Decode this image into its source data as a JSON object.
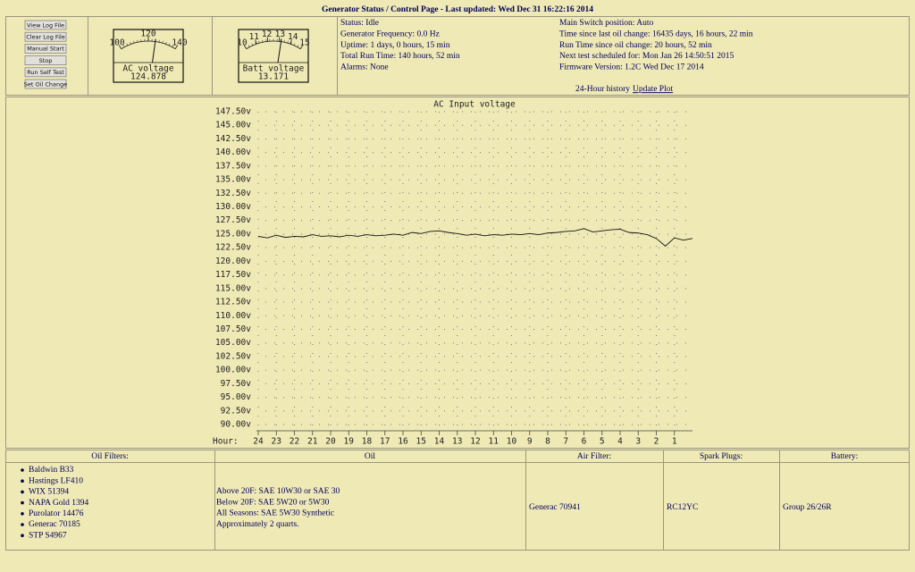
{
  "header": {
    "title": "Generator Status / Control Page - Last updated: Wed Dec 31 16:22:16 2014"
  },
  "buttons": [
    "View Log File",
    "Clear Log File",
    "Manual Start",
    "Stop",
    "Run Self Test",
    "Set Oil Change"
  ],
  "gauges": [
    {
      "scale": [
        100,
        120,
        140
      ],
      "label": "AC voltage",
      "value": 124.878
    },
    {
      "scale": [
        10,
        11,
        12,
        13,
        14,
        15
      ],
      "label": "Batt voltage",
      "value": 13.171
    }
  ],
  "status": {
    "left": [
      "Status: Idle",
      "Generator Frequency: 0.0 Hz",
      "Uptime: 1 days, 0 hours, 15 min",
      "Total Run Time: 140 hours, 52 min",
      "Alarms: None"
    ],
    "right": [
      "Main Switch position: Auto",
      "Time since last oil change: 16435 days, 16 hours, 22 min",
      "Run Time since oil change: 20 hours, 52 min",
      "Next test scheduled for: Mon Jan 26 14:50:51 2015",
      "Firmware Version: 1.2C Wed Dec 17 2014"
    ],
    "history_label": "24-Hour history",
    "history_link": "Update Plot"
  },
  "chart_data": {
    "type": "line",
    "title": "AC Input voltage",
    "x_label": "Hour:",
    "color": "#111111",
    "grid": true,
    "x": [
      24,
      23.5,
      23,
      22.5,
      22,
      21.5,
      21,
      20.5,
      20,
      19.5,
      19,
      18.5,
      18,
      17.5,
      17,
      16.5,
      16,
      15.5,
      15,
      14.5,
      14,
      13.5,
      13,
      12.5,
      12,
      11.5,
      11,
      10.5,
      10,
      9.5,
      9,
      8.5,
      8,
      7.5,
      7,
      6.5,
      6,
      5.5,
      5,
      4.5,
      4,
      3.5,
      3,
      2.5,
      2,
      1.5,
      1,
      0.5,
      0
    ],
    "values": [
      124.6,
      124.3,
      124.8,
      124.4,
      124.6,
      124.5,
      124.9,
      124.6,
      124.7,
      124.5,
      124.8,
      124.6,
      124.9,
      124.7,
      124.8,
      125.0,
      124.8,
      125.3,
      125.1,
      125.5,
      125.6,
      125.3,
      125.1,
      124.8,
      125.0,
      124.7,
      124.9,
      124.8,
      125.0,
      124.9,
      125.1,
      124.9,
      125.2,
      125.3,
      125.5,
      125.6,
      126.0,
      125.4,
      125.6,
      125.8,
      125.9,
      125.3,
      125.2,
      124.9,
      124.2,
      122.8,
      124.3,
      123.9,
      124.2
    ],
    "xlim": [
      24.1,
      0
    ],
    "xticks": [
      24,
      23,
      22,
      21,
      20,
      19,
      18,
      17,
      16,
      15,
      14,
      13,
      12,
      11,
      10,
      9,
      8,
      7,
      6,
      5,
      4,
      3,
      2,
      1
    ],
    "ylim": [
      90,
      147.5
    ],
    "yticks": [
      {
        "value": 147.5,
        "label": "147.50v"
      },
      {
        "value": 145,
        "label": "145.00v"
      },
      {
        "value": 142.5,
        "label": "142.50v"
      },
      {
        "value": 140,
        "label": "140.00v"
      },
      {
        "value": 137.5,
        "label": "137.50v"
      },
      {
        "value": 135,
        "label": "135.00v"
      },
      {
        "value": 132.5,
        "label": "132.50v"
      },
      {
        "value": 130,
        "label": "130.00v"
      },
      {
        "value": 127.5,
        "label": "127.50v"
      },
      {
        "value": 125,
        "label": "125.00v"
      },
      {
        "value": 122.5,
        "label": "122.50v"
      },
      {
        "value": 120,
        "label": "120.00v"
      },
      {
        "value": 117.5,
        "label": "117.50v"
      },
      {
        "value": 115,
        "label": "115.00v"
      },
      {
        "value": 112.5,
        "label": "112.50v"
      },
      {
        "value": 110,
        "label": "110.00v"
      },
      {
        "value": 107.5,
        "label": "107.50v"
      },
      {
        "value": 105,
        "label": "105.00v"
      },
      {
        "value": 102.5,
        "label": "102.50v"
      },
      {
        "value": 100,
        "label": "100.00v"
      },
      {
        "value": 97.5,
        "label": "97.50v"
      },
      {
        "value": 95,
        "label": "95.00v"
      },
      {
        "value": 92.5,
        "label": "92.50v"
      },
      {
        "value": 90,
        "label": "90.00v"
      }
    ]
  },
  "table": {
    "headers": [
      "Oil Filters:",
      "Oil",
      "Air Filter:",
      "Spark Plugs:",
      "Battery:"
    ],
    "oil_filters": [
      "Baldwin B33",
      "Hastings LF410",
      "WIX 51394",
      "NAPA Gold 1394",
      "Purolator 14476",
      "Generac 70185",
      "STP S4967"
    ],
    "oil": [
      "Above 20F: SAE 10W30 or SAE 30",
      "Below 20F: SAE 5W20 or 5W30",
      "All Seasons: SAE 5W30 Synthetic",
      "Approximately 2 quarts."
    ],
    "air_filter": "Generac 70941",
    "spark_plugs": "RC12YC",
    "battery": "Group 26/26R"
  }
}
